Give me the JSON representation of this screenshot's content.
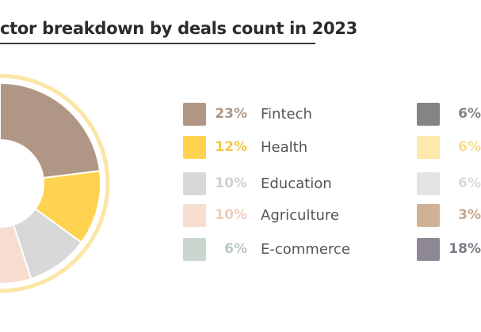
{
  "title": "ctor breakdown by deals count in 2023",
  "chart_data": {
    "type": "pie",
    "donut": true,
    "title": "ctor breakdown by deals count in 2023",
    "series": [
      {
        "label": "Fintech",
        "display": "23%",
        "value": 23,
        "color": "#b09785",
        "textColor": "#b09785"
      },
      {
        "label": "Health",
        "display": "12%",
        "value": 12,
        "color": "#ffd34f",
        "textColor": "#f6c844"
      },
      {
        "label": "Education",
        "display": "10%",
        "value": 10,
        "color": "#d8d8d8",
        "textColor": "#cfcfcf"
      },
      {
        "label": "Agriculture",
        "display": "10%",
        "value": 10,
        "color": "#f6ddd0",
        "textColor": "#ecccbc"
      },
      {
        "label": "E-commerce",
        "display": "6%",
        "value": 6,
        "color": "#c9d6ce",
        "textColor": "#b8c8be"
      },
      {
        "label": "",
        "display": "6%",
        "value": 6,
        "color": "#848484",
        "textColor": "#848484"
      },
      {
        "label": "",
        "display": "6%",
        "value": 6,
        "color": "#fde9ab",
        "textColor": "#f9dc8c"
      },
      {
        "label": "",
        "display": "6%",
        "value": 6,
        "color": "#e4e4e4",
        "textColor": "#dadada"
      },
      {
        "label": "",
        "display": "3%",
        "value": 3,
        "color": "#d1b196",
        "textColor": "#c6a68b"
      },
      {
        "label": "",
        "display": "18%",
        "value": 18,
        "color": "#8d8893",
        "textColor": "#7f7a85"
      }
    ]
  }
}
